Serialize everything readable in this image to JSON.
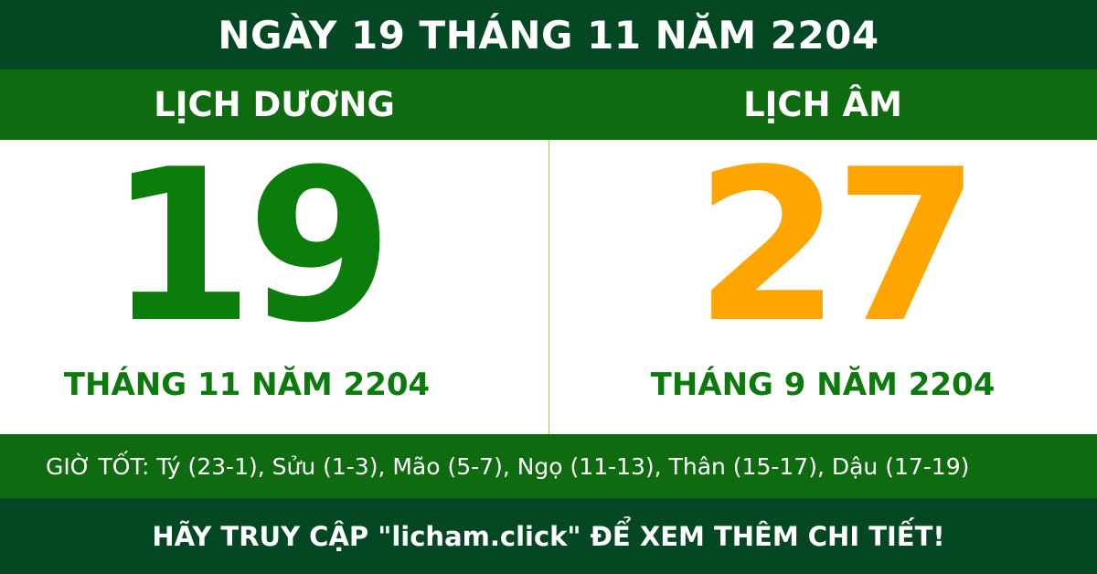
{
  "title": "NGÀY 19 THÁNG 11 NĂM 2204",
  "solar": {
    "label": "LỊCH DƯƠNG",
    "day": "19",
    "month_year": "THÁNG 11 NĂM 2204"
  },
  "lunar": {
    "label": "LỊCH ÂM",
    "day": "27",
    "month_year": "THÁNG 9 NĂM 2204"
  },
  "good_hours": "GIỜ TỐT: Tý (23-1), Sửu (1-3), Mão (5-7), Ngọ (11-13), Thân (15-17), Dậu (17-19)",
  "footer": "HÃY TRUY CẬP \"licham.click\" ĐỂ XEM THÊM CHI TIẾT!",
  "colors": {
    "dark_green": "#034822",
    "green": "#0f6b10",
    "solar_day": "#0a7d0a",
    "lunar_day": "#ffa500"
  }
}
